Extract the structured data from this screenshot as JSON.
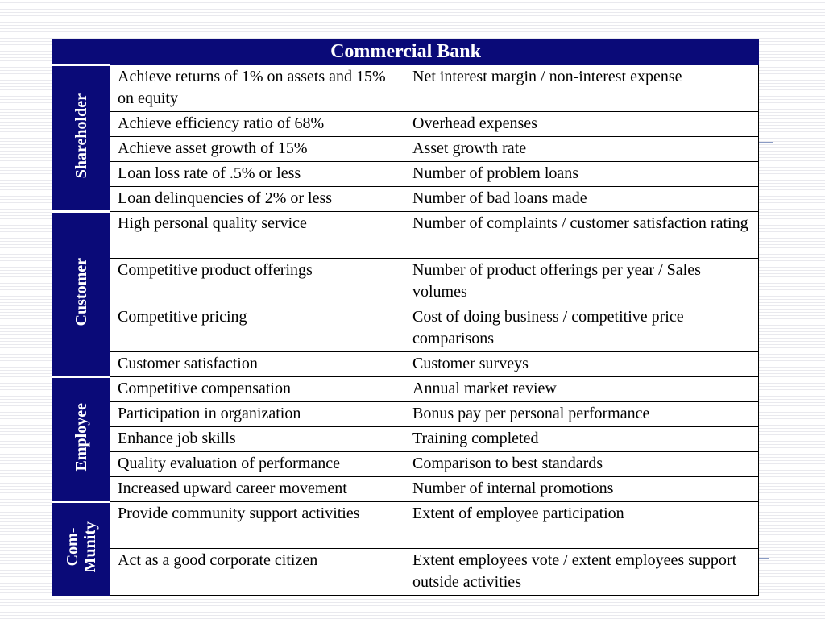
{
  "table": {
    "title": "Commercial Bank",
    "groups": [
      {
        "label": "Shareholder",
        "rows": [
          {
            "objective": "Achieve returns of 1% on assets and 15% on equity",
            "measure": "Net interest margin / non-interest expense"
          },
          {
            "objective": "Achieve efficiency ratio of 68%",
            "measure": "Overhead expenses"
          },
          {
            "objective": "Achieve asset growth of 15%",
            "measure": "Asset growth rate"
          },
          {
            "objective": "Loan loss rate of .5% or less",
            "measure": "Number of problem loans"
          },
          {
            "objective": "Loan delinquencies of 2% or less",
            "measure": "Number of bad loans made"
          }
        ]
      },
      {
        "label": "Customer",
        "rows": [
          {
            "objective": "High personal quality service",
            "measure": "Number of complaints / customer satisfaction rating"
          },
          {
            "objective": "Competitive product offerings",
            "measure": "Number of product offerings per year / Sales volumes"
          },
          {
            "objective": "Competitive pricing",
            "measure": "Cost of doing business / competitive price comparisons"
          },
          {
            "objective": "Customer satisfaction",
            "measure": "Customer surveys"
          }
        ]
      },
      {
        "label": "Employee",
        "rows": [
          {
            "objective": "Competitive compensation",
            "measure": "Annual market review"
          },
          {
            "objective": "Participation in organization",
            "measure": "Bonus pay per personal performance"
          },
          {
            "objective": "Enhance job skills",
            "measure": "Training completed"
          },
          {
            "objective": "Quality evaluation of performance",
            "measure": "Comparison to best standards"
          },
          {
            "objective": "Increased upward career movement",
            "measure": "Number of internal promotions"
          }
        ]
      },
      {
        "label": "Com-\nMunity",
        "rows": [
          {
            "objective": "Provide community support activities",
            "measure": "Extent of employee participation"
          },
          {
            "objective": "Act as a good corporate citizen",
            "measure": "Extent employees vote / extent employees support outside activities"
          }
        ]
      }
    ]
  }
}
